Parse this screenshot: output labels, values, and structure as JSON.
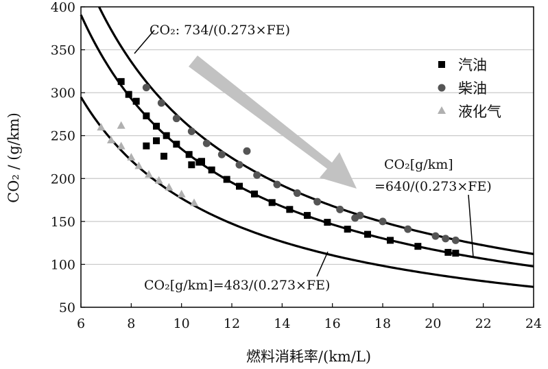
{
  "chart_data": {
    "type": "scatter",
    "title": "",
    "xlabel": "燃料消耗率/(km/L)",
    "ylabel": "CO₂ / (g/km)",
    "xlim": [
      6,
      24
    ],
    "ylim": [
      50,
      400
    ],
    "xticks": [
      6,
      8,
      10,
      12,
      14,
      16,
      18,
      20,
      22,
      24
    ],
    "yticks": [
      50,
      100,
      150,
      200,
      250,
      300,
      350,
      400
    ],
    "grid": "horizontal",
    "legend_position": "right",
    "series": [
      {
        "name": "汽油",
        "marker": "square",
        "color": "#000000",
        "points": [
          [
            7.6,
            313
          ],
          [
            7.9,
            298
          ],
          [
            8.2,
            290
          ],
          [
            8.6,
            273
          ],
          [
            9.0,
            261
          ],
          [
            9.4,
            250
          ],
          [
            9.8,
            240
          ],
          [
            10.3,
            228
          ],
          [
            10.7,
            219
          ],
          [
            11.2,
            210
          ],
          [
            11.8,
            199
          ],
          [
            12.3,
            191
          ],
          [
            12.9,
            182
          ],
          [
            13.6,
            172
          ],
          [
            14.3,
            164
          ],
          [
            15.0,
            157
          ],
          [
            15.8,
            149
          ],
          [
            16.6,
            141
          ],
          [
            17.4,
            135
          ],
          [
            18.3,
            128
          ],
          [
            19.4,
            121
          ],
          [
            20.6,
            114
          ],
          [
            20.9,
            113
          ],
          [
            8.6,
            238
          ],
          [
            9.0,
            244
          ],
          [
            9.3,
            226
          ],
          [
            10.4,
            216
          ],
          [
            10.8,
            220
          ]
        ]
      },
      {
        "name": "柴油",
        "marker": "circle",
        "color": "#555555",
        "points": [
          [
            8.6,
            306
          ],
          [
            9.2,
            288
          ],
          [
            9.8,
            270
          ],
          [
            10.4,
            255
          ],
          [
            11.0,
            241
          ],
          [
            11.6,
            228
          ],
          [
            12.3,
            216
          ],
          [
            13.0,
            204
          ],
          [
            13.8,
            193
          ],
          [
            14.6,
            183
          ],
          [
            15.4,
            173
          ],
          [
            16.3,
            164
          ],
          [
            17.1,
            157
          ],
          [
            18.0,
            150
          ],
          [
            19.0,
            141
          ],
          [
            20.1,
            133
          ],
          [
            20.5,
            130
          ],
          [
            20.9,
            128
          ],
          [
            12.6,
            232
          ],
          [
            16.9,
            154
          ]
        ]
      },
      {
        "name": "液化气",
        "marker": "triangle",
        "color": "#b0b0b0",
        "points": [
          [
            6.8,
            260
          ],
          [
            7.2,
            245
          ],
          [
            7.6,
            262
          ],
          [
            7.6,
            238
          ],
          [
            8.0,
            225
          ],
          [
            8.3,
            215
          ],
          [
            8.7,
            205
          ],
          [
            9.1,
            198
          ],
          [
            9.5,
            190
          ],
          [
            10.0,
            182
          ],
          [
            10.5,
            172
          ]
        ]
      }
    ],
    "curves": [
      {
        "k": 734,
        "label": "CO₂: 734/(0.273×FE)"
      },
      {
        "k": 640,
        "label_line1": "CO₂[g/km]",
        "label_line2": "=640/(0.273×FE)"
      },
      {
        "k": 483,
        "label": "CO₂[g/km]=483/(0.273×FE)"
      }
    ],
    "annotation": "arrow indicating decrease of CO₂ with increasing FE"
  }
}
